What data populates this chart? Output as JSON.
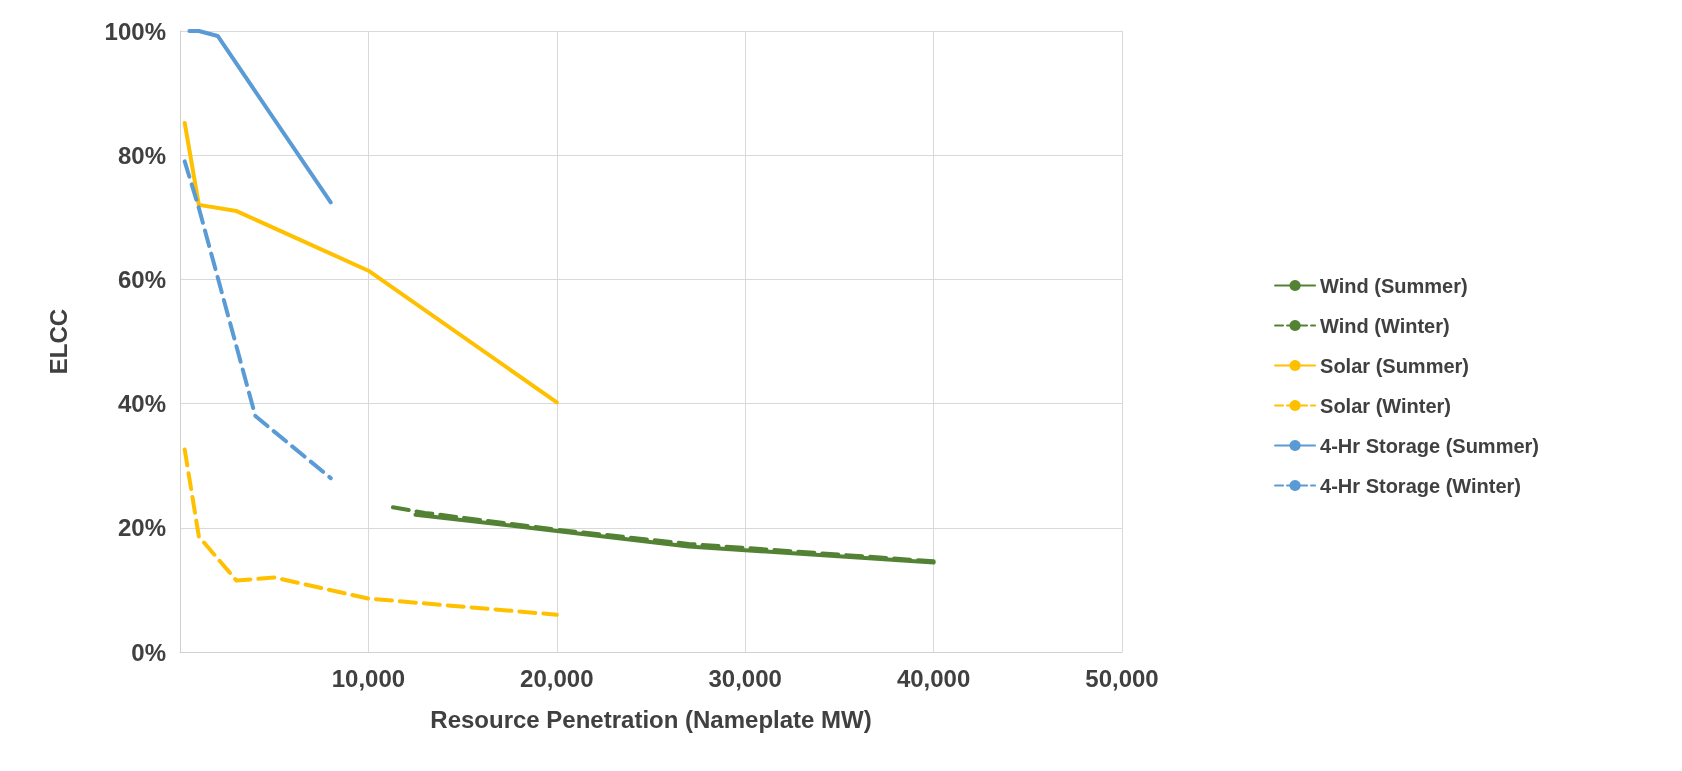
{
  "chart_data": {
    "type": "line",
    "xlabel": "Resource Penetration (Nameplate MW)",
    "ylabel": "ELCC",
    "xlim": [
      0,
      50000
    ],
    "xticks": [
      {
        "value": 0,
        "label": null
      },
      {
        "value": 10000,
        "label": "10,000"
      },
      {
        "value": 20000,
        "label": "20,000"
      },
      {
        "value": 30000,
        "label": "30,000"
      },
      {
        "value": 40000,
        "label": "40,000"
      },
      {
        "value": 50000,
        "label": "50,000"
      }
    ],
    "ylim": [
      0,
      100
    ],
    "yticks": [
      {
        "value": 0,
        "label": "0%"
      },
      {
        "value": 20,
        "label": "20%"
      },
      {
        "value": 40,
        "label": "40%"
      },
      {
        "value": 60,
        "label": "60%"
      },
      {
        "value": 80,
        "label": "80%"
      },
      {
        "value": 100,
        "label": "100%"
      }
    ],
    "grid": true,
    "legend": "right",
    "marker": "none",
    "series": [
      {
        "name": "Wind (Summer)",
        "color": "#548235",
        "line_style": "solid",
        "x": [
          12500,
          20000,
          27000,
          40000
        ],
        "values": [
          22.1,
          19.5,
          17.0,
          14.4
        ]
      },
      {
        "name": "Wind (Winter)",
        "color": "#548235",
        "line_style": "dashed",
        "x": [
          11300,
          13000,
          20000,
          27000,
          40000
        ],
        "values": [
          23.3,
          22.4,
          19.7,
          17.4,
          14.6
        ]
      },
      {
        "name": "Solar (Summer)",
        "color": "#ffc000",
        "line_style": "solid",
        "x": [
          250,
          1000,
          3000,
          10000,
          20000
        ],
        "values": [
          85.2,
          72,
          71,
          61.4,
          40.2
        ]
      },
      {
        "name": "Solar (Winter)",
        "color": "#ffc000",
        "line_style": "dashed",
        "x": [
          250,
          1000,
          3000,
          5000,
          10000,
          20000
        ],
        "values": [
          32.6,
          18.6,
          11.5,
          12,
          8.6,
          6
        ]
      },
      {
        "name": "4-Hr Storage (Summer)",
        "color": "#5b9bd5",
        "line_style": "solid",
        "x": [
          500,
          1000,
          2000,
          8000
        ],
        "values": [
          100,
          100,
          99.2,
          72.4
        ]
      },
      {
        "name": "4-Hr Storage (Winter)",
        "color": "#5b9bd5",
        "line_style": "dashed",
        "x": [
          250,
          1000,
          4000,
          8000
        ],
        "values": [
          79,
          71.5,
          38,
          28
        ]
      }
    ]
  }
}
